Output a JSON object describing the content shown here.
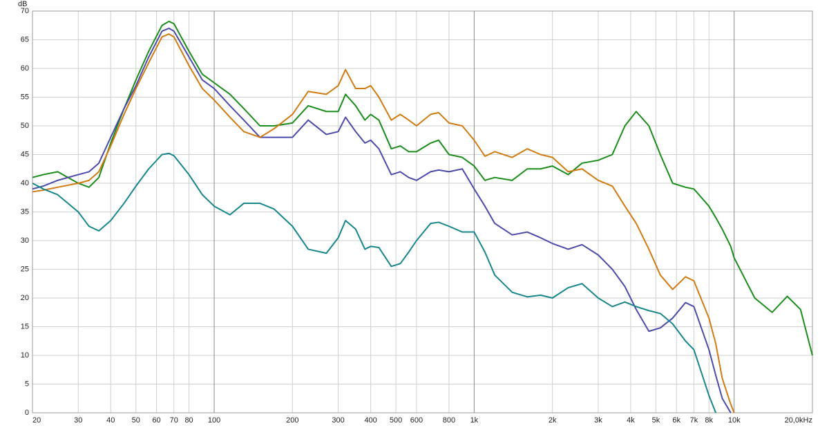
{
  "chart_data": {
    "type": "line",
    "y_label": "dB",
    "log_x": true,
    "grid": true,
    "x": [
      20,
      22,
      25,
      30,
      33,
      36,
      40,
      45,
      50,
      56,
      63,
      67,
      70,
      80,
      90,
      100,
      115,
      130,
      150,
      170,
      200,
      230,
      270,
      300,
      320,
      350,
      380,
      400,
      430,
      480,
      520,
      560,
      600,
      680,
      730,
      800,
      900,
      1000,
      1100,
      1200,
      1400,
      1600,
      1800,
      2000,
      2300,
      2600,
      3000,
      3400,
      3800,
      4200,
      4700,
      5200,
      5800,
      6500,
      7000,
      8000,
      8500,
      9000,
      9700,
      10000,
      12000,
      14000,
      16000,
      18000,
      20000
    ],
    "xlim": [
      20,
      20000
    ],
    "xticks": [
      20,
      30,
      40,
      50,
      60,
      70,
      80,
      100,
      200,
      300,
      400,
      500,
      600,
      800,
      {
        "value": 1000,
        "label": "1k"
      },
      {
        "value": 2000,
        "label": "2k"
      },
      {
        "value": 3000,
        "label": "3k"
      },
      {
        "value": 4000,
        "label": "4k"
      },
      {
        "value": 5000,
        "label": "5k"
      },
      {
        "value": 6000,
        "label": "6k"
      },
      {
        "value": 7000,
        "label": "7k"
      },
      {
        "value": 8000,
        "label": "8k"
      },
      {
        "value": 10000,
        "label": "10k"
      },
      {
        "value": 20000,
        "label": "20,0kHz"
      }
    ],
    "ylim": [
      0,
      70
    ],
    "yticks": [
      0,
      5,
      10,
      15,
      20,
      25,
      30,
      35,
      40,
      45,
      50,
      55,
      60,
      65,
      70
    ],
    "series": [
      {
        "color": "#1a8c1a",
        "values": [
          41,
          41.5,
          42,
          40,
          39.3,
          41,
          47,
          53,
          58,
          63,
          67.5,
          68.2,
          67.8,
          63,
          59,
          57.5,
          55.5,
          53,
          50,
          50,
          50.5,
          53.5,
          52.5,
          52.5,
          55.5,
          53.5,
          51,
          52,
          51,
          46,
          46.5,
          45.5,
          45.5,
          47,
          47.5,
          45,
          44.5,
          43,
          40.5,
          41,
          40.5,
          42.5,
          42.5,
          43,
          41.5,
          43.5,
          44,
          45,
          50,
          52.5,
          50,
          45,
          40,
          39.3,
          39,
          36,
          34,
          32,
          29,
          27,
          20,
          17.5,
          20.3,
          18,
          10
        ]
      },
      {
        "color": "#4b4aaa",
        "values": [
          39,
          39.5,
          40.5,
          41.5,
          42,
          43.5,
          48,
          53,
          57,
          62,
          66.5,
          67,
          66.5,
          62,
          58,
          56.5,
          53.5,
          51,
          48,
          48,
          48,
          51,
          48.5,
          49,
          51.5,
          49,
          47,
          47.5,
          46,
          41.5,
          42,
          41,
          40.5,
          42,
          42.3,
          42,
          42.5,
          39,
          36,
          33,
          31,
          31.5,
          30.5,
          29.5,
          28.5,
          29.3,
          27.5,
          25,
          22,
          18,
          14.2,
          14.8,
          16.5,
          19.2,
          18.5,
          11,
          6.5,
          2.5,
          0,
          null,
          null,
          null,
          null,
          null,
          null
        ]
      },
      {
        "color": "#d07a12",
        "values": [
          38.5,
          38.8,
          39.3,
          40,
          40.5,
          42,
          46.5,
          52,
          56.5,
          61,
          65.5,
          66,
          65.5,
          60.5,
          56.5,
          54.5,
          51.5,
          49,
          48,
          49.5,
          52,
          56,
          55.5,
          57,
          59.8,
          56.5,
          56.5,
          57,
          55,
          51,
          52,
          51,
          50,
          52,
          52.3,
          50.5,
          50,
          47.5,
          44.7,
          45.5,
          44.5,
          46,
          45,
          44.5,
          42,
          42.5,
          40.5,
          39.5,
          36,
          33,
          28.5,
          24,
          21.5,
          23.7,
          23,
          16.5,
          12,
          6,
          1.5,
          0,
          null,
          null,
          null,
          null,
          null
        ]
      },
      {
        "color": "#16868a",
        "values": [
          40,
          39,
          38,
          35,
          32.5,
          31.7,
          33.5,
          36.5,
          39.5,
          42.5,
          45,
          45.2,
          44.8,
          41.5,
          38,
          36,
          34.5,
          36.5,
          36.5,
          35.5,
          32.5,
          28.5,
          27.8,
          30.5,
          33.5,
          32,
          28.5,
          29,
          28.8,
          25.5,
          26,
          28,
          30,
          33,
          33.2,
          32.5,
          31.5,
          31.5,
          28,
          24,
          21,
          20.2,
          20.5,
          20,
          21.8,
          22.5,
          20,
          18.5,
          19.3,
          18.5,
          17.8,
          17.3,
          15.5,
          12.5,
          11,
          3,
          0,
          null,
          null,
          null,
          null,
          null,
          null,
          null,
          null
        ]
      }
    ]
  }
}
